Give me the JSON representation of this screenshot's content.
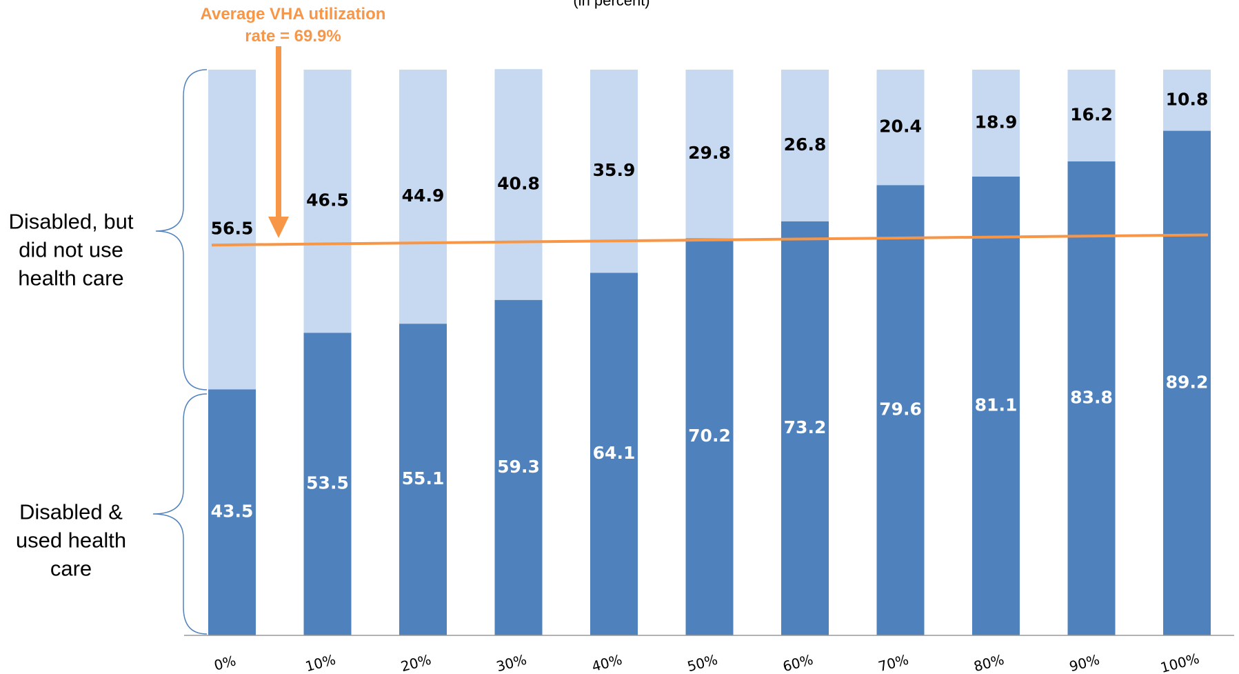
{
  "chart_data": {
    "type": "stacked_bar",
    "subtitle": "(in percent)",
    "annotation": "Average VHA utilization rate = 69.9%",
    "categories": [
      "0%",
      "10%",
      "20%",
      "30%",
      "40%",
      "50%",
      "60%",
      "70%",
      "80%",
      "90%",
      "100%"
    ],
    "series": [
      {
        "name": "Disabled & used health care",
        "color": "#4f81bd",
        "values": [
          43.5,
          53.5,
          55.1,
          59.3,
          64.1,
          70.2,
          73.2,
          79.6,
          81.1,
          83.8,
          89.2
        ]
      },
      {
        "name": "Disabled, but did not use health care",
        "color": "#c6d9f1",
        "values": [
          56.5,
          46.5,
          44.9,
          40.8,
          35.9,
          29.8,
          26.8,
          20.4,
          18.9,
          16.2,
          10.8
        ]
      }
    ],
    "reference_line": {
      "start": 69.0,
      "end": 70.8,
      "color": "#f79646"
    },
    "ylim": [
      0,
      100
    ]
  }
}
